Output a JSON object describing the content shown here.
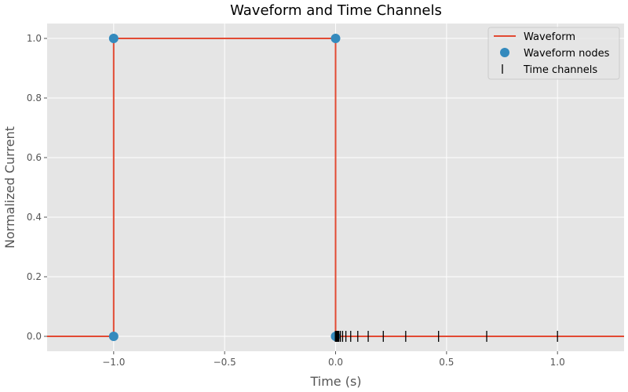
{
  "chart_data": {
    "type": "line",
    "title": "Waveform and Time Channels",
    "xlabel": "Time (s)",
    "ylabel": "Normalized Current",
    "xlim": [
      -1.3,
      1.3
    ],
    "ylim": [
      -0.05,
      1.05
    ],
    "xticks": [
      -1.0,
      -0.5,
      0.0,
      0.5,
      1.0
    ],
    "xtick_labels": [
      "−1.0",
      "−0.5",
      "0.0",
      "0.5",
      "1.0"
    ],
    "yticks": [
      0.0,
      0.2,
      0.4,
      0.6,
      0.8,
      1.0
    ],
    "ytick_labels": [
      "0.0",
      "0.2",
      "0.4",
      "0.6",
      "0.8",
      "1.0"
    ],
    "grid": true,
    "legend_position": "top-right",
    "style": {
      "background": "#e5e5e5",
      "grid": "#ffffff",
      "waveform_color": "#e24a33",
      "nodes_color": "#348abd",
      "channels_color": "#000000"
    },
    "series": [
      {
        "name": "Waveform",
        "type": "line",
        "x": [
          -1.3,
          -1.0,
          -1.0,
          0.0,
          0.0,
          1.3
        ],
        "y": [
          0,
          0,
          1,
          1,
          0,
          0
        ]
      },
      {
        "name": "Waveform nodes",
        "type": "scatter",
        "x": [
          -1.0,
          -1.0,
          0.0,
          0.0
        ],
        "y": [
          0,
          1,
          1,
          0
        ]
      },
      {
        "name": "Time channels",
        "type": "marker-vline",
        "x": [
          1e-05,
          1.47e-05,
          2.15e-05,
          3.16e-05,
          4.64e-05,
          6.81e-05,
          0.0001,
          0.000147,
          0.000215,
          0.000316,
          0.000464,
          0.000681,
          0.001,
          0.00147,
          0.00215,
          0.00316,
          0.00464,
          0.00681,
          0.01,
          0.0147,
          0.0215,
          0.0316,
          0.0464,
          0.0681,
          0.1,
          0.147,
          0.215,
          0.316,
          0.464,
          0.681,
          1.0
        ],
        "y": 0
      }
    ]
  }
}
